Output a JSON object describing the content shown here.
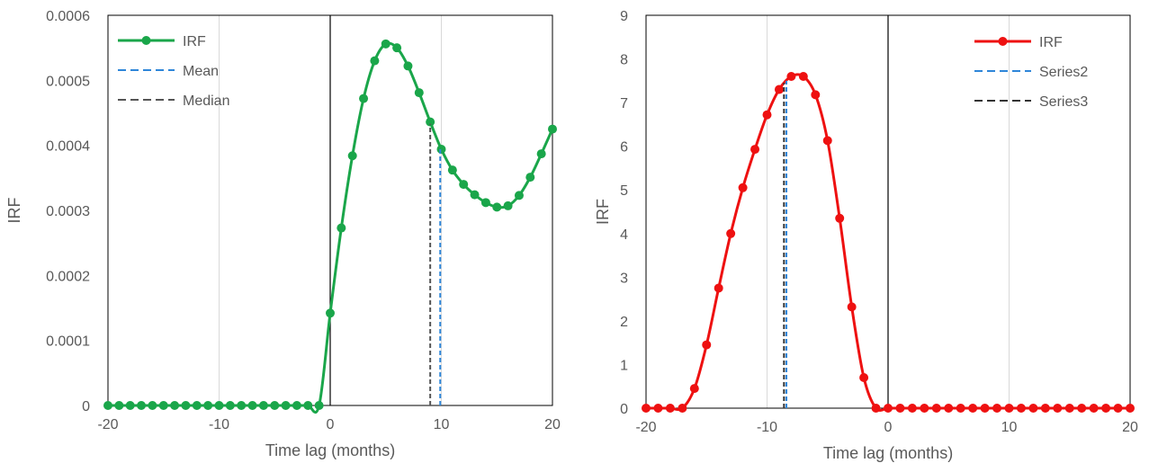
{
  "chart_data": [
    {
      "type": "line",
      "title": "",
      "xlabel": "Time lag (months)",
      "ylabel": "IRF",
      "xlim": [
        -20,
        20
      ],
      "ylim": [
        0,
        0.0006
      ],
      "xticks": [
        -20,
        -10,
        0,
        10,
        20
      ],
      "xtick_labels": [
        "-20",
        "-10",
        "0",
        "10",
        "20"
      ],
      "yticks": [
        0,
        0.0001,
        0.0002,
        0.0003,
        0.0004,
        0.0005,
        0.0006
      ],
      "ytick_labels": [
        "0",
        "0.0001",
        "0.0002",
        "0.0003",
        "0.0004",
        "0.0005",
        "0.0006"
      ],
      "grid": "vertical",
      "legend_position": "top-left",
      "zero_line": true,
      "series": [
        {
          "name": "IRF",
          "color": "#1aa64a",
          "style": "solid-markers",
          "x": [
            -20,
            -19,
            -18,
            -17,
            -16,
            -15,
            -14,
            -13,
            -12,
            -11,
            -10,
            -9,
            -8,
            -7,
            -6,
            -5,
            -4,
            -3,
            -2,
            -1,
            0,
            1,
            2,
            3,
            4,
            5,
            6,
            7,
            8,
            9,
            10,
            11,
            12,
            13,
            14,
            15,
            16,
            17,
            18,
            19,
            20
          ],
          "y": [
            0,
            0,
            0,
            0,
            0,
            0,
            0,
            0,
            0,
            0,
            0,
            0,
            0,
            0,
            0,
            0,
            0,
            0,
            0,
            0,
            0.000142,
            0.000273,
            0.000384,
            0.000472,
            0.00053,
            0.000556,
            0.00055,
            0.000522,
            0.000481,
            0.000436,
            0.000394,
            0.000362,
            0.00034,
            0.000324,
            0.000312,
            0.000305,
            0.000307,
            0.000323,
            0.000351,
            0.000387,
            0.000425
          ]
        },
        {
          "name": "Mean",
          "color": "#2e86d9",
          "style": "dashed",
          "x": [
            9.9,
            9.9
          ],
          "y": [
            0,
            0.000396
          ]
        },
        {
          "name": "Median",
          "color": "#555555",
          "style": "dashed",
          "x": [
            9.0,
            9.0
          ],
          "y": [
            0,
            0.000433
          ]
        }
      ]
    },
    {
      "type": "line",
      "title": "",
      "xlabel": "Time lag (months)",
      "ylabel": "IRF",
      "xlim": [
        -20,
        20
      ],
      "ylim": [
        0,
        9
      ],
      "xticks": [
        -20,
        -10,
        0,
        10,
        20
      ],
      "xtick_labels": [
        "-20",
        "-10",
        "0",
        "10",
        "20"
      ],
      "yticks": [
        0,
        1,
        2,
        3,
        4,
        5,
        6,
        7,
        8,
        9
      ],
      "ytick_labels": [
        "0",
        "1",
        "2",
        "3",
        "4",
        "5",
        "6",
        "7",
        "8",
        "9"
      ],
      "grid": "vertical",
      "legend_position": "top-right",
      "zero_line": true,
      "series": [
        {
          "name": "IRF",
          "color": "#ee1111",
          "style": "solid-markers",
          "x": [
            -20,
            -19,
            -18,
            -17,
            -16,
            -15,
            -14,
            -13,
            -12,
            -11,
            -10,
            -9,
            -8,
            -7,
            -6,
            -5,
            -4,
            -3,
            -2,
            -1,
            0,
            1,
            2,
            3,
            4,
            5,
            6,
            7,
            8,
            9,
            10,
            11,
            12,
            13,
            14,
            15,
            16,
            17,
            18,
            19,
            20
          ],
          "y": [
            0,
            0,
            0,
            0,
            0.45,
            1.45,
            2.75,
            4.0,
            5.05,
            5.93,
            6.72,
            7.3,
            7.6,
            7.6,
            7.18,
            6.13,
            4.35,
            2.32,
            0.7,
            0,
            0,
            0,
            0,
            0,
            0,
            0,
            0,
            0,
            0,
            0,
            0,
            0,
            0,
            0,
            0,
            0,
            0,
            0,
            0,
            0,
            0
          ]
        },
        {
          "name": "Series2",
          "color": "#2e86d9",
          "style": "dashed",
          "x": [
            -8.4,
            -8.4
          ],
          "y": [
            0,
            7.5
          ]
        },
        {
          "name": "Series3",
          "color": "#333333",
          "style": "dashed",
          "x": [
            -8.6,
            -8.6
          ],
          "y": [
            0,
            7.45
          ]
        }
      ]
    }
  ]
}
